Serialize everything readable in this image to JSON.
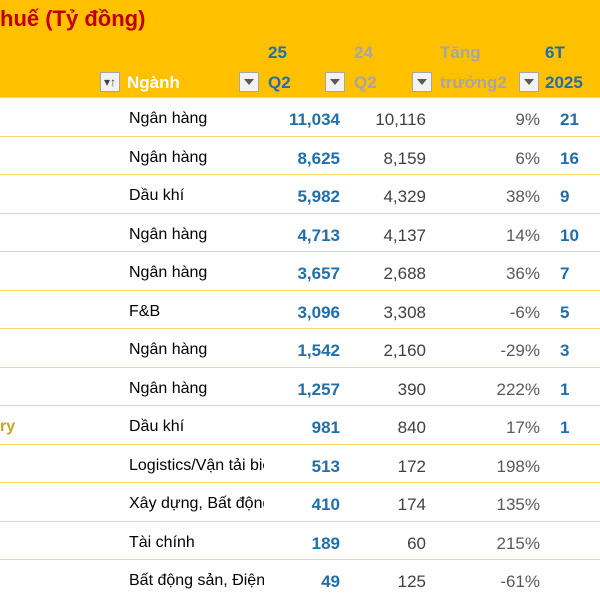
{
  "title": "huế (Tỷ đồng)",
  "header": {
    "sector_label": "Ngành",
    "q2_2025_top": "25",
    "q2_2025_bottom": "Q2",
    "q2_2024_top": "24",
    "q2_2024_bottom": "Q2",
    "growth_top": "Tăng",
    "growth_bottom": "trưởng2",
    "h1_top": "6T",
    "h1_bottom": "2025"
  },
  "rows": [
    {
      "prefix": "",
      "sector": "Ngân hàng",
      "q2_2025": "11,034",
      "q2_2024": "10,116",
      "growth": "9%",
      "h1": "21"
    },
    {
      "prefix": "",
      "sector": "Ngân hàng",
      "q2_2025": "8,625",
      "q2_2024": "8,159",
      "growth": "6%",
      "h1": "16"
    },
    {
      "prefix": "",
      "sector": "Dầu khí",
      "q2_2025": "5,982",
      "q2_2024": "4,329",
      "growth": "38%",
      "h1": "9"
    },
    {
      "prefix": "",
      "sector": "Ngân hàng",
      "q2_2025": "4,713",
      "q2_2024": "4,137",
      "growth": "14%",
      "h1": "10"
    },
    {
      "prefix": "",
      "sector": "Ngân hàng",
      "q2_2025": "3,657",
      "q2_2024": "2,688",
      "growth": "36%",
      "h1": "7"
    },
    {
      "prefix": "",
      "sector": "F&B",
      "q2_2025": "3,096",
      "q2_2024": "3,308",
      "growth": "-6%",
      "h1": "5"
    },
    {
      "prefix": "",
      "sector": "Ngân hàng",
      "q2_2025": "1,542",
      "q2_2024": "2,160",
      "growth": "-29%",
      "h1": "3"
    },
    {
      "prefix": "",
      "sector": "Ngân hàng",
      "q2_2025": "1,257",
      "q2_2024": "390",
      "growth": "222%",
      "h1": "1"
    },
    {
      "prefix": "ry",
      "sector": "Dầu khí",
      "q2_2025": "981",
      "q2_2024": "840",
      "growth": "17%",
      "h1": "1"
    },
    {
      "prefix": "",
      "sector": "Logistics/Vận tải biển",
      "q2_2025": "513",
      "q2_2024": "172",
      "growth": "198%",
      "h1": ""
    },
    {
      "prefix": "",
      "sector": "Xây dựng, Bất động sản",
      "q2_2025": "410",
      "q2_2024": "174",
      "growth": "135%",
      "h1": ""
    },
    {
      "prefix": "",
      "sector": "Tài chính",
      "q2_2025": "189",
      "q2_2024": "60",
      "growth": "215%",
      "h1": ""
    },
    {
      "prefix": "",
      "sector": "Bất động sản, Điện",
      "q2_2025": "49",
      "q2_2024": "125",
      "growth": "-61%",
      "h1": ""
    }
  ]
}
